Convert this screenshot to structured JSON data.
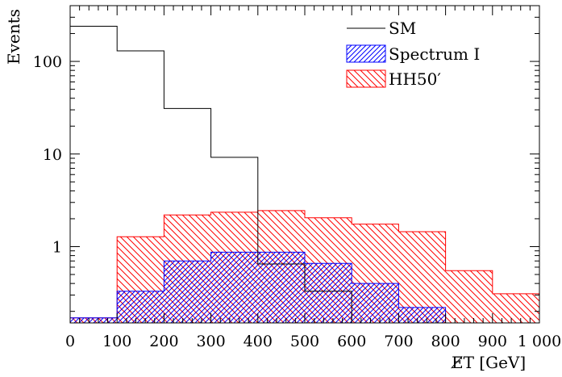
{
  "chart_data": {
    "type": "step-histogram",
    "xlabel": "E̸T [GeV]",
    "ylabel": "Events",
    "xlim": [
      0,
      1000
    ],
    "ylim": [
      0.15,
      400
    ],
    "yscale": "log",
    "bin_edges": [
      0,
      100,
      200,
      300,
      400,
      500,
      600,
      700,
      800,
      900,
      1000
    ],
    "x_ticks": [
      0,
      100,
      200,
      300,
      400,
      500,
      600,
      700,
      800,
      900,
      1000
    ],
    "x_tick_labels": [
      "0",
      "100",
      "200",
      "300",
      "400",
      "500",
      "600",
      "700",
      "800",
      "900",
      "1 000"
    ],
    "y_ticks": [
      1,
      10,
      100
    ],
    "y_tick_labels": [
      "1",
      "10",
      "100"
    ],
    "legend_position": "top-right",
    "series": [
      {
        "name": "SM",
        "style": "line",
        "color": "#000000",
        "values": [
          240,
          130,
          31,
          9.2,
          0.65,
          0.33,
          0.15,
          0.15,
          0.15,
          0.15
        ]
      },
      {
        "name": "Spectrum I",
        "style": "hatch-forward",
        "color": "#0000ff",
        "values": [
          0.17,
          0.33,
          0.7,
          0.87,
          0.87,
          0.66,
          0.4,
          0.22,
          0.15,
          0.15
        ]
      },
      {
        "name": "HH50′",
        "style": "hatch-backward",
        "color": "#ff0000",
        "values": [
          0.17,
          1.28,
          2.2,
          2.35,
          2.45,
          2.05,
          1.75,
          1.45,
          0.55,
          0.31
        ]
      }
    ]
  }
}
